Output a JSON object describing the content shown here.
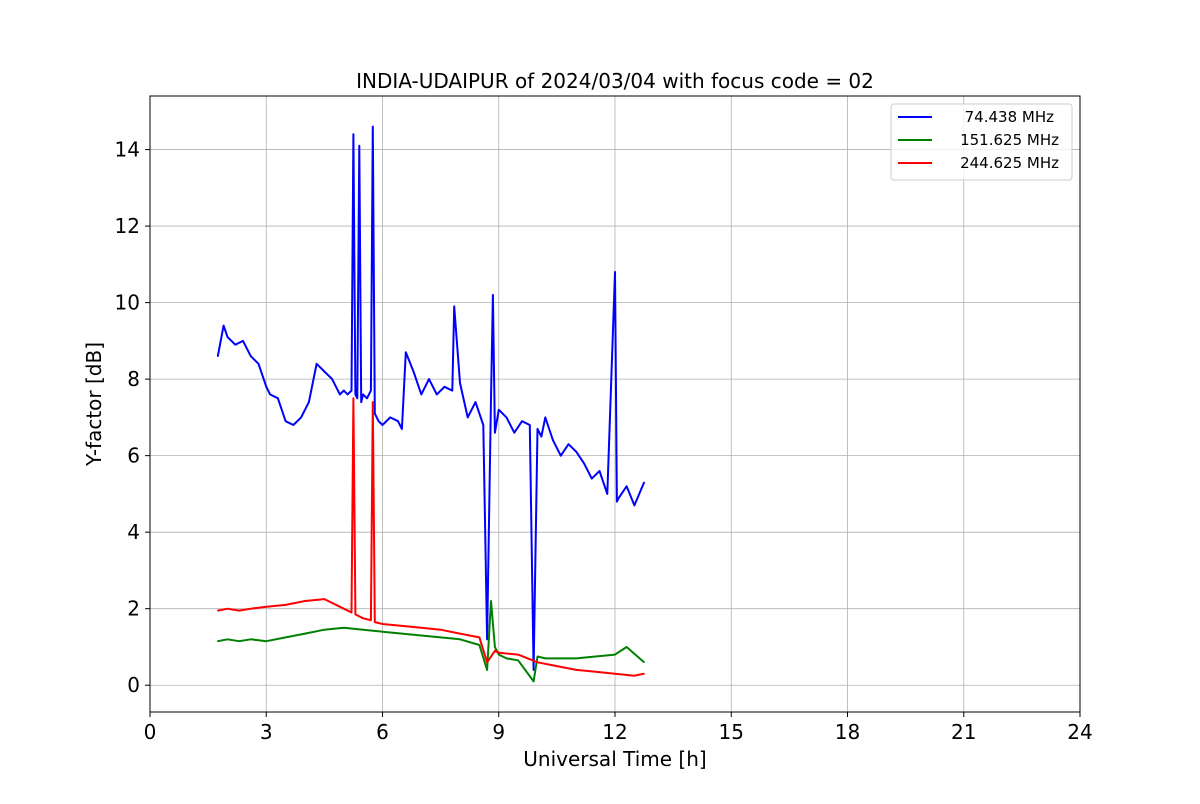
{
  "chart_data": {
    "type": "line",
    "title": "INDIA-UDAIPUR of 2024/03/04 with focus code = 02",
    "xlabel": "Universal Time [h]",
    "ylabel": "Y-factor [dB]",
    "xlim": [
      0,
      24
    ],
    "ylim": [
      -0.7,
      15.4
    ],
    "xticks": [
      0,
      3,
      6,
      9,
      12,
      15,
      18,
      21,
      24
    ],
    "yticks": [
      0,
      2,
      4,
      6,
      8,
      10,
      12,
      14
    ],
    "grid": true,
    "legend_position": "top-right",
    "series": [
      {
        "name": "74.438 MHz",
        "color": "#0000ff",
        "x": [
          1.75,
          1.9,
          2.0,
          2.2,
          2.4,
          2.6,
          2.8,
          3.0,
          3.1,
          3.3,
          3.5,
          3.7,
          3.9,
          4.1,
          4.3,
          4.5,
          4.7,
          4.9,
          5.0,
          5.1,
          5.2,
          5.25,
          5.3,
          5.35,
          5.4,
          5.45,
          5.5,
          5.6,
          5.7,
          5.75,
          5.8,
          5.9,
          6.0,
          6.2,
          6.4,
          6.5,
          6.6,
          6.8,
          7.0,
          7.2,
          7.4,
          7.6,
          7.8,
          7.85,
          8.0,
          8.2,
          8.4,
          8.6,
          8.7,
          8.8,
          8.85,
          8.9,
          9.0,
          9.2,
          9.4,
          9.6,
          9.8,
          9.9,
          10.0,
          10.1,
          10.2,
          10.4,
          10.6,
          10.8,
          11.0,
          11.2,
          11.4,
          11.6,
          11.8,
          12.0,
          12.05,
          12.1,
          12.3,
          12.5,
          12.75
        ],
        "y": [
          8.6,
          9.4,
          9.1,
          8.9,
          9.0,
          8.6,
          8.4,
          7.8,
          7.6,
          7.5,
          6.9,
          6.8,
          7.0,
          7.4,
          8.4,
          8.2,
          8.0,
          7.6,
          7.7,
          7.6,
          7.7,
          14.4,
          7.6,
          7.5,
          14.1,
          7.4,
          7.6,
          7.5,
          7.7,
          14.6,
          7.1,
          6.9,
          6.8,
          7.0,
          6.9,
          6.7,
          8.7,
          8.2,
          7.6,
          8.0,
          7.6,
          7.8,
          7.7,
          9.9,
          7.9,
          7.0,
          7.4,
          6.8,
          1.2,
          7.5,
          10.2,
          6.6,
          7.2,
          7.0,
          6.6,
          6.9,
          6.8,
          0.4,
          6.7,
          6.5,
          7.0,
          6.4,
          6.0,
          6.3,
          6.1,
          5.8,
          5.4,
          5.6,
          5.0,
          10.8,
          4.8,
          4.9,
          5.2,
          4.7,
          5.3
        ]
      },
      {
        "name": "151.625 MHz",
        "color": "#008000",
        "x": [
          1.75,
          2.0,
          2.3,
          2.6,
          3.0,
          3.5,
          4.0,
          4.5,
          5.0,
          5.5,
          6.0,
          6.5,
          7.0,
          7.5,
          8.0,
          8.5,
          8.7,
          8.8,
          8.9,
          9.0,
          9.2,
          9.5,
          9.9,
          10.0,
          10.2,
          10.5,
          11.0,
          11.5,
          12.0,
          12.3,
          12.75
        ],
        "y": [
          1.15,
          1.2,
          1.15,
          1.2,
          1.15,
          1.25,
          1.35,
          1.45,
          1.5,
          1.45,
          1.4,
          1.35,
          1.3,
          1.25,
          1.2,
          1.05,
          0.4,
          2.2,
          1.0,
          0.8,
          0.7,
          0.65,
          0.1,
          0.75,
          0.7,
          0.7,
          0.7,
          0.75,
          0.8,
          1.0,
          0.6
        ]
      },
      {
        "name": "244.625 MHz",
        "color": "#ff0000",
        "x": [
          1.75,
          2.0,
          2.3,
          2.6,
          3.0,
          3.5,
          4.0,
          4.5,
          5.0,
          5.2,
          5.25,
          5.3,
          5.5,
          5.7,
          5.75,
          5.8,
          6.0,
          6.5,
          7.0,
          7.5,
          8.0,
          8.5,
          8.7,
          8.9,
          9.0,
          9.5,
          10.0,
          10.5,
          11.0,
          11.5,
          12.0,
          12.5,
          12.75
        ],
        "y": [
          1.95,
          2.0,
          1.95,
          2.0,
          2.05,
          2.1,
          2.2,
          2.25,
          2.0,
          1.9,
          7.5,
          1.85,
          1.75,
          1.7,
          7.4,
          1.65,
          1.6,
          1.55,
          1.5,
          1.45,
          1.35,
          1.25,
          0.6,
          0.9,
          0.85,
          0.8,
          0.6,
          0.5,
          0.4,
          0.35,
          0.3,
          0.25,
          0.3
        ]
      }
    ]
  }
}
